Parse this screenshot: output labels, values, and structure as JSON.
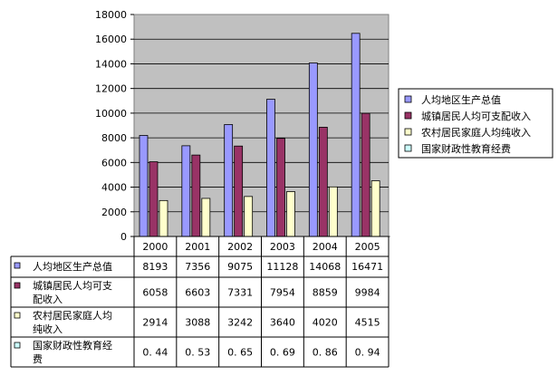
{
  "chart_data": {
    "type": "bar",
    "categories": [
      "2000",
      "2001",
      "2002",
      "2003",
      "2004",
      "2005"
    ],
    "ylim": [
      0,
      18000
    ],
    "yticks": [
      "0",
      "2000",
      "4000",
      "6000",
      "8000",
      "10000",
      "12000",
      "14000",
      "16000",
      "18000"
    ],
    "grid": true,
    "legend_position": "right",
    "series": [
      {
        "name": "人均地区生产总值",
        "color": "#9999ff",
        "values": [
          8193,
          7356,
          9075,
          11128,
          14068,
          16471
        ],
        "table_values": [
          "8193",
          "7356",
          "9075",
          "11128",
          "14068",
          "16471"
        ],
        "table_label_lines": [
          "人均地区生产总值"
        ]
      },
      {
        "name": "城镇居民人均可支配收入",
        "color": "#993366",
        "values": [
          6058,
          6603,
          7331,
          7954,
          8859,
          9984
        ],
        "table_values": [
          "6058",
          "6603",
          "7331",
          "7954",
          "8859",
          "9984"
        ],
        "table_label_lines": [
          "城镇居民人均可支",
          "配收入"
        ]
      },
      {
        "name": "农村居民家庭人均纯收入",
        "color": "#ffffcc",
        "values": [
          2914,
          3088,
          3242,
          3640,
          4020,
          4515
        ],
        "table_values": [
          "2914",
          "3088",
          "3242",
          "3640",
          "4020",
          "4515"
        ],
        "table_label_lines": [
          "农村居民家庭人均",
          "纯收入"
        ]
      },
      {
        "name": "国家财政性教育经费",
        "color": "#ccffff",
        "values": [
          0.44,
          0.53,
          0.65,
          0.69,
          0.86,
          0.94
        ],
        "table_values": [
          "0. 44",
          "0. 53",
          "0. 65",
          "0. 69",
          "0. 86",
          "0. 94"
        ],
        "table_label_lines": [
          "国家财政性教育经",
          "费"
        ]
      }
    ]
  }
}
